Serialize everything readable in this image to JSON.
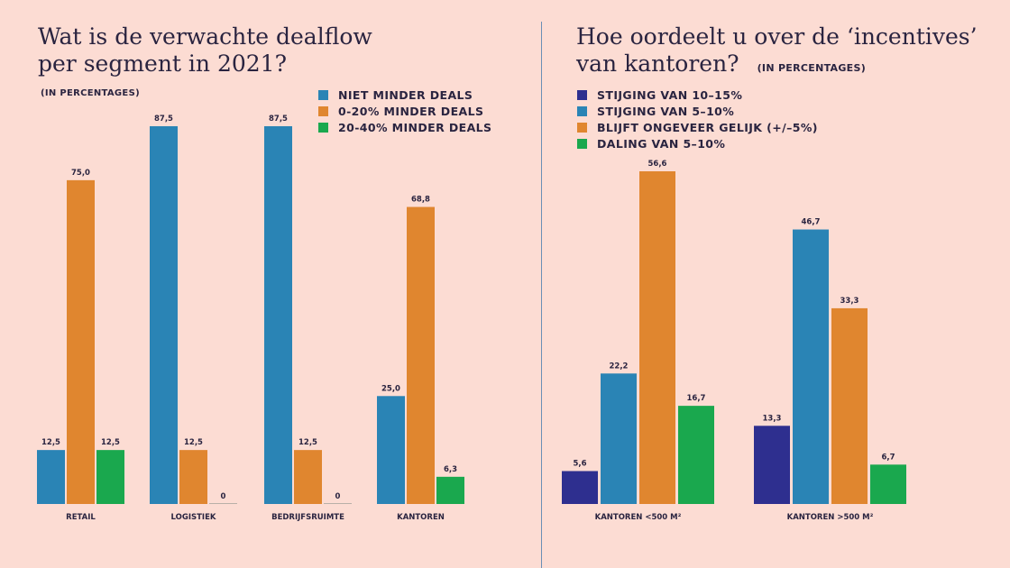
{
  "left_title_line1": "Wat is de verwachte dealflow",
  "left_title_line2": "per segment in 2021?",
  "left_units": "(IN PERCENTAGES)",
  "right_title_line1": "Hoe oordeelt u over de ‘incentives’",
  "right_title_line2": "van kantoren?",
  "right_units": "(IN PERCENTAGES)",
  "colors": {
    "background": "#fcdcd3",
    "navy": "#2e2f8f",
    "blue": "#2a84b5",
    "orange": "#e0862f",
    "green": "#1aa84e"
  },
  "chart_data": [
    {
      "type": "bar",
      "categories": [
        "RETAIL",
        "LOGISTIEK",
        "BEDRIJFSRUIMTE",
        "KANTOREN"
      ],
      "series": [
        {
          "name": "NIET MINDER DEALS",
          "color": "#2a84b5",
          "values": [
            12.5,
            87.5,
            87.5,
            25.0
          ],
          "labels": [
            "12,5",
            "87,5",
            "87,5",
            "25,0"
          ]
        },
        {
          "name": "0-20% MINDER DEALS",
          "color": "#e0862f",
          "values": [
            75.0,
            12.5,
            12.5,
            68.8
          ],
          "labels": [
            "75,0",
            "12,5",
            "12,5",
            "68,8"
          ]
        },
        {
          "name": "20-40% MINDER DEALS",
          "color": "#1aa84e",
          "values": [
            12.5,
            0,
            0,
            6.3
          ],
          "labels": [
            "12,5",
            "0",
            "0",
            "6,3"
          ]
        }
      ],
      "ylim": [
        0,
        87.5
      ],
      "grid": false,
      "legend": "top-right"
    },
    {
      "type": "bar",
      "categories": [
        "KANTOREN <500 M²",
        "KANTOREN >500 M²"
      ],
      "series": [
        {
          "name": "STIJGING VAN 10–15%",
          "color": "#2e2f8f",
          "values": [
            5.6,
            13.3
          ],
          "labels": [
            "5,6",
            "13,3"
          ]
        },
        {
          "name": "STIJGING VAN 5–10%",
          "color": "#2a84b5",
          "values": [
            22.2,
            46.7
          ],
          "labels": [
            "22,2",
            "46,7"
          ]
        },
        {
          "name": "BLIJFT ONGEVEER GELIJK (+/–5%)",
          "color": "#e0862f",
          "values": [
            56.6,
            33.3
          ],
          "labels": [
            "56,6",
            "33,3"
          ]
        },
        {
          "name": "DALING VAN 5–10%",
          "color": "#1aa84e",
          "values": [
            16.7,
            6.7
          ],
          "labels": [
            "16,7",
            "6,7"
          ]
        }
      ],
      "ylim": [
        0,
        56.6
      ],
      "grid": false,
      "legend": "top-left"
    }
  ]
}
